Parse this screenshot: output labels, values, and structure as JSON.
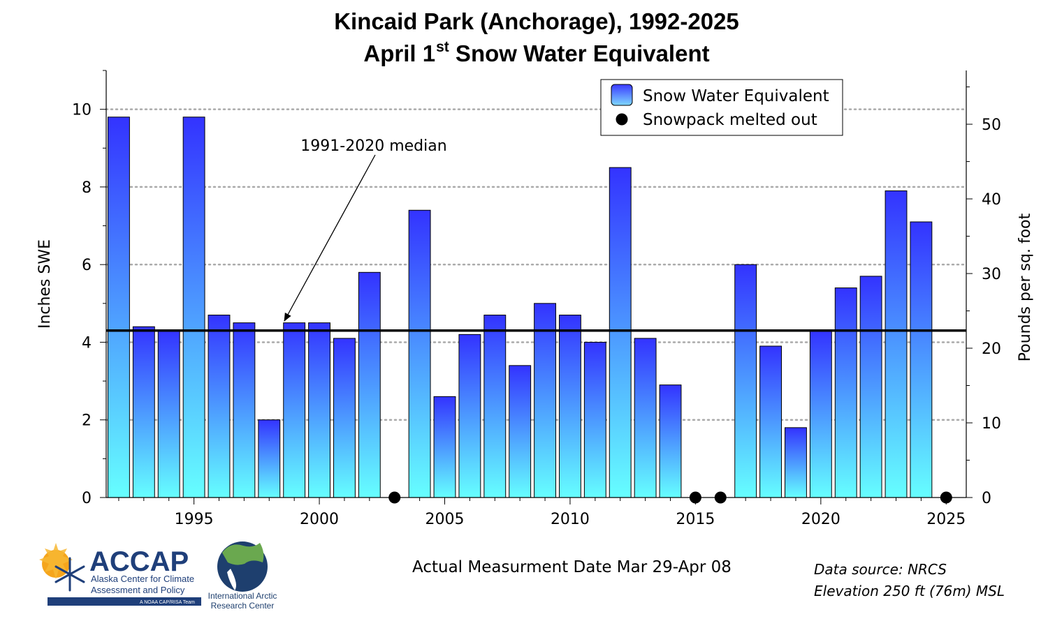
{
  "title": {
    "line1": "Kincaid Park (Anchorage), 1992-2025",
    "line2_pre": "April 1",
    "line2_sup": "st",
    "line2_post": " Snow Water Equivalent"
  },
  "chart_data": {
    "type": "bar",
    "x": [
      1992,
      1993,
      1994,
      1995,
      1996,
      1997,
      1998,
      1999,
      2000,
      2001,
      2002,
      2003,
      2004,
      2005,
      2006,
      2007,
      2008,
      2009,
      2010,
      2011,
      2012,
      2013,
      2014,
      2015,
      2016,
      2017,
      2018,
      2019,
      2020,
      2021,
      2022,
      2023,
      2024,
      2025
    ],
    "values": [
      9.8,
      4.4,
      4.3,
      9.8,
      4.7,
      4.5,
      2.0,
      4.5,
      4.5,
      4.1,
      5.8,
      0,
      7.4,
      2.6,
      4.2,
      4.7,
      3.4,
      5.0,
      4.7,
      4.0,
      8.5,
      4.1,
      2.9,
      0,
      0,
      6.0,
      3.9,
      1.8,
      4.3,
      5.4,
      5.7,
      7.9,
      7.1,
      0
    ],
    "melted_out_years": [
      2003,
      2015,
      2016,
      2025
    ],
    "median": 4.3,
    "median_label": "1991-2020 median",
    "xticks": [
      1995,
      2000,
      2005,
      2010,
      2015,
      2020,
      2025
    ],
    "xlim": [
      1991.5,
      2025.8
    ],
    "ylim": [
      0,
      11
    ],
    "yticks": [
      0,
      2,
      4,
      6,
      8,
      10
    ],
    "ylabel": "Inches SWE",
    "y2label": "Pounds per sq. foot",
    "y2ticks": [
      0,
      10,
      20,
      30,
      40,
      50
    ],
    "lbs_per_inch": 5.2,
    "grid": "dotted horizontal at major y ticks",
    "legend": {
      "position": "top-right",
      "items": [
        {
          "label": "Snow Water Equivalent",
          "marker": "gradient-square"
        },
        {
          "label": "Snowpack melted out",
          "marker": "black-dot"
        }
      ]
    },
    "colors": {
      "bar_top": "#3333ff",
      "bar_bottom": "#66ffff",
      "median": "#000000",
      "grid": "#aaaaaa"
    }
  },
  "footer": {
    "measurement_note": "Actual Measurment Date Mar 29-Apr 08",
    "source": "Data source: NRCS",
    "elevation": "Elevation 250 ft (76m) MSL"
  },
  "logos": {
    "accap": {
      "name": "ACCAP",
      "line1": "Alaska Center for Climate",
      "line2": "Assessment and Policy",
      "tagline": "A NOAA CAP/RISA Team"
    },
    "iarc": {
      "line1": "International Arctic",
      "line2": "Research Center"
    }
  }
}
